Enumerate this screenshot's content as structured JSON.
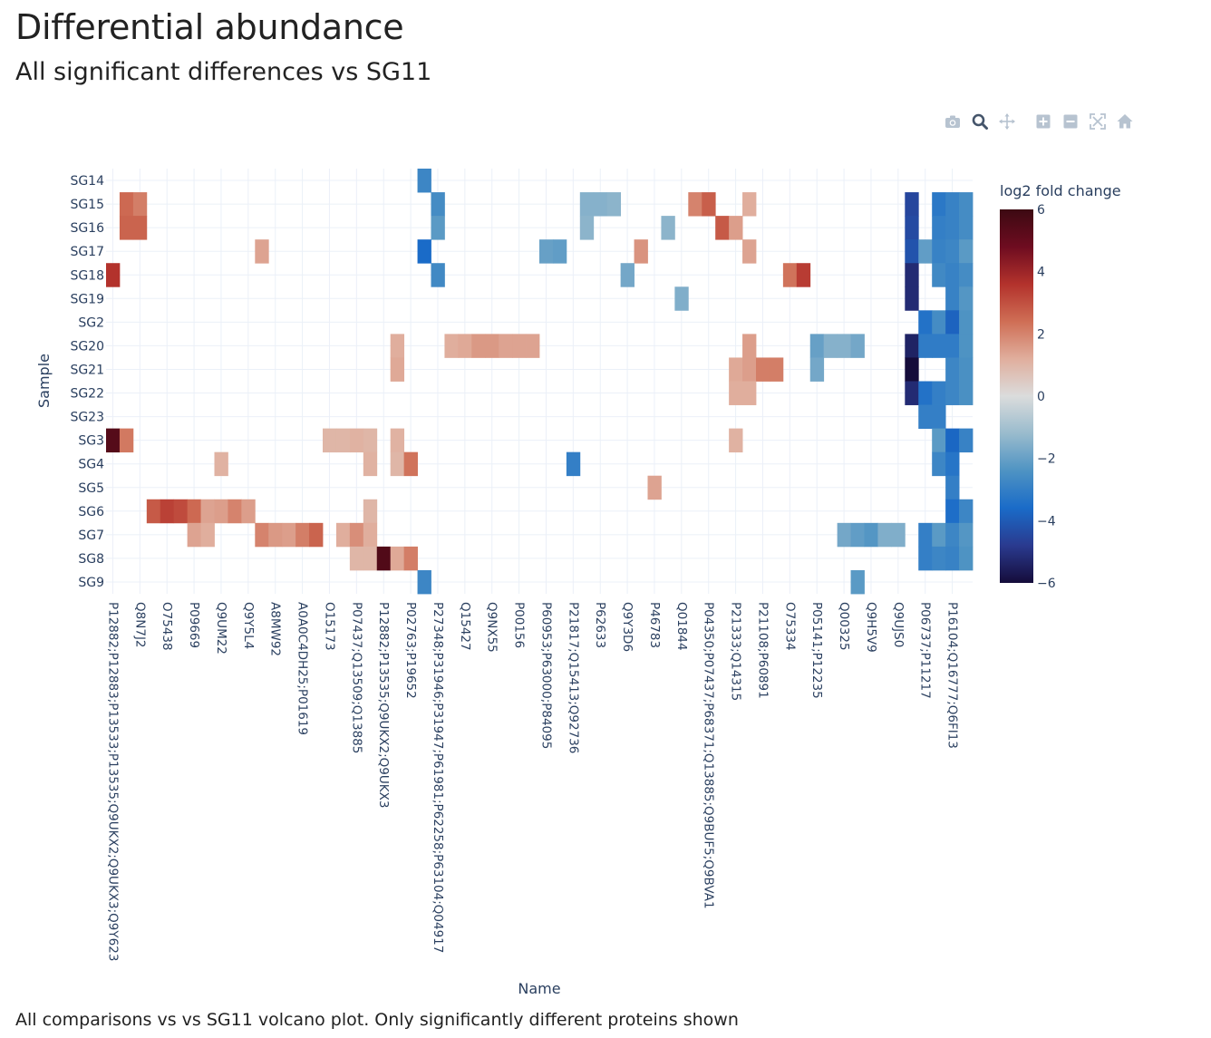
{
  "header": {
    "title": "Differential abundance",
    "subtitle": "All significant differences vs SG11"
  },
  "modebar": {
    "icons": [
      "camera-icon",
      "zoom-icon",
      "pan-icon",
      "zoom-in-icon",
      "zoom-out-icon",
      "autoscale-icon",
      "home-icon"
    ],
    "icon_color": "#b7c3d0",
    "active_color": "#44546a"
  },
  "caption": "All comparisons vs vs SG11 volcano plot. Only significantly different proteins shown",
  "chart_data": {
    "type": "heatmap",
    "xlabel": "Name",
    "ylabel": "Sample",
    "colorbar_title": "log2 fold change",
    "zlim": [
      -6,
      6
    ],
    "colorbar_ticks": [
      "6",
      "4",
      "2",
      "0",
      "−2",
      "−4",
      "−6"
    ],
    "colorbar_tick_values": [
      6,
      4,
      2,
      0,
      -2,
      -4,
      -6
    ],
    "colorscale": [
      "#150c3a",
      "#2a3a8f",
      "#1a6bc8",
      "#4e93c3",
      "#99bbcd",
      "#dbdcdc",
      "#e0ae9d",
      "#cf6e55",
      "#b3322c",
      "#6e0c20",
      "#3c0912"
    ],
    "y_categories": [
      "SG14",
      "SG15",
      "SG16",
      "SG17",
      "SG18",
      "SG19",
      "SG2",
      "SG20",
      "SG21",
      "SG22",
      "SG23",
      "SG3",
      "SG4",
      "SG5",
      "SG6",
      "SG7",
      "SG8",
      "SG9"
    ],
    "x_tick_labels": [
      "P12882;P12883;P13533;P13535;Q9UKX2;Q9UKX3;Q9Y623",
      "Q8N7J2",
      "O75438",
      "P09669",
      "Q9UM22",
      "Q9Y5L4",
      "A8MW92",
      "A0A0C4DH25;P01619",
      "O15173",
      "P07437;Q13509;Q13885",
      "P12882;P13535;Q9UKX2;Q9UKX3",
      "P02763;P19652",
      "P27348;P31946;P31947;P61981;P62258;P63104;Q04917",
      "Q15427",
      "Q9NX55",
      "P00156",
      "P60953;P63000;P84095",
      "P21817;Q15413;Q92736",
      "P62633",
      "Q9Y3D6",
      "P46783",
      "Q01844",
      "P04350;P07437;P68371;Q13885;Q9BUF5;Q9BVA1",
      "P21333;Q14315",
      "P21108;P60891",
      "O75334",
      "P05141;P12235",
      "Q00325",
      "Q9H5V9",
      "Q9UJS0",
      "P06737;P11217",
      "P16104;Q16777;Q6FI13"
    ],
    "n_columns": 64,
    "cells": [
      {
        "y": "SG14",
        "c": 23,
        "v": -2.8
      },
      {
        "y": "SG15",
        "c": 1,
        "v": 2.5
      },
      {
        "y": "SG15",
        "c": 2,
        "v": 2.1
      },
      {
        "y": "SG15",
        "c": 24,
        "v": -2.6
      },
      {
        "y": "SG15",
        "c": 35,
        "v": -1.5
      },
      {
        "y": "SG15",
        "c": 36,
        "v": -1.5
      },
      {
        "y": "SG15",
        "c": 37,
        "v": -1.4
      },
      {
        "y": "SG15",
        "c": 43,
        "v": 2.0
      },
      {
        "y": "SG15",
        "c": 44,
        "v": 2.7
      },
      {
        "y": "SG15",
        "c": 47,
        "v": 1.2
      },
      {
        "y": "SG15",
        "c": 59,
        "v": -4.5
      },
      {
        "y": "SG15",
        "c": 61,
        "v": -3.2
      },
      {
        "y": "SG15",
        "c": 62,
        "v": -2.9
      },
      {
        "y": "SG15",
        "c": 63,
        "v": -2.6
      },
      {
        "y": "SG16",
        "c": 1,
        "v": 2.6
      },
      {
        "y": "SG16",
        "c": 2,
        "v": 2.6
      },
      {
        "y": "SG16",
        "c": 24,
        "v": -2.2
      },
      {
        "y": "SG16",
        "c": 35,
        "v": -1.4
      },
      {
        "y": "SG16",
        "c": 41,
        "v": -1.4
      },
      {
        "y": "SG16",
        "c": 45,
        "v": 2.8
      },
      {
        "y": "SG16",
        "c": 46,
        "v": 1.5
      },
      {
        "y": "SG16",
        "c": 59,
        "v": -4.4
      },
      {
        "y": "SG16",
        "c": 61,
        "v": -3.0
      },
      {
        "y": "SG16",
        "c": 62,
        "v": -2.9
      },
      {
        "y": "SG16",
        "c": 63,
        "v": -2.6
      },
      {
        "y": "SG17",
        "c": 11,
        "v": 1.4
      },
      {
        "y": "SG17",
        "c": 23,
        "v": -3.6
      },
      {
        "y": "SG17",
        "c": 32,
        "v": -2.0
      },
      {
        "y": "SG17",
        "c": 33,
        "v": -2.1
      },
      {
        "y": "SG17",
        "c": 39,
        "v": 1.7
      },
      {
        "y": "SG17",
        "c": 47,
        "v": 1.4
      },
      {
        "y": "SG17",
        "c": 59,
        "v": -4.2
      },
      {
        "y": "SG17",
        "c": 60,
        "v": -2.1
      },
      {
        "y": "SG17",
        "c": 61,
        "v": -2.9
      },
      {
        "y": "SG17",
        "c": 62,
        "v": -2.8
      },
      {
        "y": "SG17",
        "c": 63,
        "v": -2.2
      },
      {
        "y": "SG18",
        "c": 0,
        "v": 3.6
      },
      {
        "y": "SG18",
        "c": 24,
        "v": -2.7
      },
      {
        "y": "SG18",
        "c": 38,
        "v": -1.8
      },
      {
        "y": "SG18",
        "c": 50,
        "v": 2.3
      },
      {
        "y": "SG18",
        "c": 51,
        "v": 3.4
      },
      {
        "y": "SG18",
        "c": 59,
        "v": -5.2
      },
      {
        "y": "SG18",
        "c": 61,
        "v": -2.7
      },
      {
        "y": "SG18",
        "c": 62,
        "v": -2.9
      },
      {
        "y": "SG18",
        "c": 63,
        "v": -2.6
      },
      {
        "y": "SG19",
        "c": 42,
        "v": -1.6
      },
      {
        "y": "SG19",
        "c": 59,
        "v": -5.2
      },
      {
        "y": "SG19",
        "c": 62,
        "v": -2.9
      },
      {
        "y": "SG19",
        "c": 63,
        "v": -2.3
      },
      {
        "y": "SG2",
        "c": 60,
        "v": -3.4
      },
      {
        "y": "SG2",
        "c": 61,
        "v": -2.6
      },
      {
        "y": "SG2",
        "c": 62,
        "v": -3.8
      },
      {
        "y": "SG2",
        "c": 63,
        "v": -2.4
      },
      {
        "y": "SG20",
        "c": 21,
        "v": 1.2
      },
      {
        "y": "SG20",
        "c": 25,
        "v": 1.2
      },
      {
        "y": "SG20",
        "c": 26,
        "v": 1.3
      },
      {
        "y": "SG20",
        "c": 27,
        "v": 1.6
      },
      {
        "y": "SG20",
        "c": 28,
        "v": 1.6
      },
      {
        "y": "SG20",
        "c": 29,
        "v": 1.4
      },
      {
        "y": "SG20",
        "c": 30,
        "v": 1.4
      },
      {
        "y": "SG20",
        "c": 31,
        "v": 1.4
      },
      {
        "y": "SG20",
        "c": 47,
        "v": 1.5
      },
      {
        "y": "SG20",
        "c": 52,
        "v": -2.0
      },
      {
        "y": "SG20",
        "c": 53,
        "v": -1.5
      },
      {
        "y": "SG20",
        "c": 54,
        "v": -1.5
      },
      {
        "y": "SG20",
        "c": 55,
        "v": -1.8
      },
      {
        "y": "SG20",
        "c": 59,
        "v": -5.4
      },
      {
        "y": "SG20",
        "c": 60,
        "v": -3.1
      },
      {
        "y": "SG20",
        "c": 61,
        "v": -3.1
      },
      {
        "y": "SG20",
        "c": 62,
        "v": -3.1
      },
      {
        "y": "SG20",
        "c": 63,
        "v": -2.4
      },
      {
        "y": "SG21",
        "c": 21,
        "v": 1.3
      },
      {
        "y": "SG21",
        "c": 46,
        "v": 1.3
      },
      {
        "y": "SG21",
        "c": 47,
        "v": 1.5
      },
      {
        "y": "SG21",
        "c": 48,
        "v": 2.1
      },
      {
        "y": "SG21",
        "c": 49,
        "v": 2.1
      },
      {
        "y": "SG21",
        "c": 52,
        "v": -1.8
      },
      {
        "y": "SG21",
        "c": 59,
        "v": -6.0
      },
      {
        "y": "SG21",
        "c": 62,
        "v": -2.8
      },
      {
        "y": "SG21",
        "c": 63,
        "v": -2.5
      },
      {
        "y": "SG22",
        "c": 46,
        "v": 1.2
      },
      {
        "y": "SG22",
        "c": 47,
        "v": 1.2
      },
      {
        "y": "SG22",
        "c": 59,
        "v": -5.2
      },
      {
        "y": "SG22",
        "c": 60,
        "v": -3.4
      },
      {
        "y": "SG22",
        "c": 61,
        "v": -3.0
      },
      {
        "y": "SG22",
        "c": 62,
        "v": -2.8
      },
      {
        "y": "SG22",
        "c": 63,
        "v": -2.5
      },
      {
        "y": "SG23",
        "c": 60,
        "v": -3.0
      },
      {
        "y": "SG23",
        "c": 61,
        "v": -3.0
      },
      {
        "y": "SG3",
        "c": 0,
        "v": 5.4
      },
      {
        "y": "SG3",
        "c": 1,
        "v": 2.2
      },
      {
        "y": "SG3",
        "c": 16,
        "v": 1.0
      },
      {
        "y": "SG3",
        "c": 17,
        "v": 1.0
      },
      {
        "y": "SG3",
        "c": 18,
        "v": 1.1
      },
      {
        "y": "SG3",
        "c": 19,
        "v": 1.0
      },
      {
        "y": "SG3",
        "c": 21,
        "v": 1.1
      },
      {
        "y": "SG3",
        "c": 46,
        "v": 1.1
      },
      {
        "y": "SG3",
        "c": 61,
        "v": -2.2
      },
      {
        "y": "SG3",
        "c": 62,
        "v": -3.7
      },
      {
        "y": "SG3",
        "c": 63,
        "v": -2.9
      },
      {
        "y": "SG4",
        "c": 8,
        "v": 1.1
      },
      {
        "y": "SG4",
        "c": 19,
        "v": 1.1
      },
      {
        "y": "SG4",
        "c": 21,
        "v": 1.0
      },
      {
        "y": "SG4",
        "c": 22,
        "v": 2.3
      },
      {
        "y": "SG4",
        "c": 34,
        "v": -3.0
      },
      {
        "y": "SG4",
        "c": 61,
        "v": -2.8
      },
      {
        "y": "SG4",
        "c": 62,
        "v": -3.3
      },
      {
        "y": "SG5",
        "c": 40,
        "v": 1.4
      },
      {
        "y": "SG5",
        "c": 62,
        "v": -3.0
      },
      {
        "y": "SG6",
        "c": 3,
        "v": 2.8
      },
      {
        "y": "SG6",
        "c": 4,
        "v": 3.3
      },
      {
        "y": "SG6",
        "c": 5,
        "v": 3.1
      },
      {
        "y": "SG6",
        "c": 6,
        "v": 2.5
      },
      {
        "y": "SG6",
        "c": 7,
        "v": 1.4
      },
      {
        "y": "SG6",
        "c": 8,
        "v": 1.5
      },
      {
        "y": "SG6",
        "c": 9,
        "v": 2.0
      },
      {
        "y": "SG6",
        "c": 10,
        "v": 1.5
      },
      {
        "y": "SG6",
        "c": 19,
        "v": 1.0
      },
      {
        "y": "SG6",
        "c": 62,
        "v": -3.5
      },
      {
        "y": "SG6",
        "c": 63,
        "v": -2.8
      },
      {
        "y": "SG7",
        "c": 6,
        "v": 1.4
      },
      {
        "y": "SG7",
        "c": 7,
        "v": 1.2
      },
      {
        "y": "SG7",
        "c": 11,
        "v": 2.0
      },
      {
        "y": "SG7",
        "c": 12,
        "v": 1.6
      },
      {
        "y": "SG7",
        "c": 13,
        "v": 1.5
      },
      {
        "y": "SG7",
        "c": 14,
        "v": 2.1
      },
      {
        "y": "SG7",
        "c": 15,
        "v": 2.6
      },
      {
        "y": "SG7",
        "c": 17,
        "v": 1.2
      },
      {
        "y": "SG7",
        "c": 18,
        "v": 1.8
      },
      {
        "y": "SG7",
        "c": 19,
        "v": 1.2
      },
      {
        "y": "SG7",
        "c": 54,
        "v": -1.8
      },
      {
        "y": "SG7",
        "c": 55,
        "v": -2.1
      },
      {
        "y": "SG7",
        "c": 56,
        "v": -2.3
      },
      {
        "y": "SG7",
        "c": 57,
        "v": -1.6
      },
      {
        "y": "SG7",
        "c": 58,
        "v": -1.6
      },
      {
        "y": "SG7",
        "c": 60,
        "v": -3.0
      },
      {
        "y": "SG7",
        "c": 61,
        "v": -2.2
      },
      {
        "y": "SG7",
        "c": 62,
        "v": -2.8
      },
      {
        "y": "SG7",
        "c": 63,
        "v": -2.3
      },
      {
        "y": "SG8",
        "c": 18,
        "v": 1.0
      },
      {
        "y": "SG8",
        "c": 19,
        "v": 1.0
      },
      {
        "y": "SG8",
        "c": 20,
        "v": 5.5
      },
      {
        "y": "SG8",
        "c": 21,
        "v": 1.3
      },
      {
        "y": "SG8",
        "c": 22,
        "v": 2.1
      },
      {
        "y": "SG8",
        "c": 60,
        "v": -3.0
      },
      {
        "y": "SG8",
        "c": 61,
        "v": -2.8
      },
      {
        "y": "SG8",
        "c": 62,
        "v": -2.9
      },
      {
        "y": "SG8",
        "c": 63,
        "v": -2.4
      },
      {
        "y": "SG9",
        "c": 23,
        "v": -2.8
      },
      {
        "y": "SG9",
        "c": 55,
        "v": -2.2
      }
    ]
  }
}
